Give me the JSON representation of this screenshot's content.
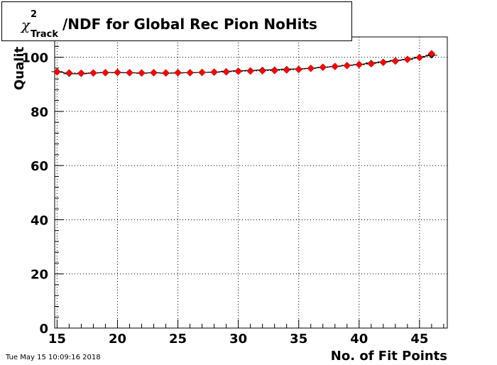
{
  "title": {
    "chi": "χ",
    "sup": "2",
    "sub": "Track",
    "main": "/NDF for Global Rec Pion NoHits"
  },
  "timestamp": "Tue May 15 10:09:16 2018",
  "colors": {
    "marker": "#ff0000",
    "reference": "#000000",
    "grid": "#000000"
  },
  "chart_data": {
    "type": "scatter",
    "xlabel": "No. of Fit Points",
    "ylabel": "Qualit",
    "xlim": [
      14.8,
      47.3
    ],
    "ylim": [
      0,
      107.5
    ],
    "xticks": [
      15,
      20,
      25,
      30,
      35,
      40,
      45
    ],
    "yticks": [
      0,
      20,
      40,
      60,
      80,
      100
    ],
    "grid": true,
    "series": [
      {
        "marker": "black-diamond-errorbars",
        "x": [
          15,
          16,
          17,
          18,
          19,
          20,
          21,
          22,
          23,
          24,
          25,
          26,
          27,
          28,
          29,
          30,
          31,
          32,
          33,
          34,
          35,
          36,
          37,
          38,
          39,
          40,
          41,
          42,
          43,
          44,
          45,
          46
        ],
        "y": [
          94.7,
          93.9,
          93.9,
          94.2,
          94.4,
          94.3,
          94.3,
          94.1,
          94.3,
          94.1,
          94.2,
          94.3,
          94.4,
          94.5,
          94.8,
          95.0,
          95.1,
          95.3,
          95.4,
          95.6,
          95.7,
          95.9,
          96.3,
          96.6,
          97.0,
          97.3,
          97.9,
          98.3,
          98.8,
          99.2,
          100.0,
          100.7
        ]
      },
      {
        "marker": "red-diamond",
        "x": [
          15,
          16,
          17,
          18,
          19,
          20,
          21,
          22,
          23,
          24,
          25,
          26,
          27,
          28,
          29,
          30,
          31,
          32,
          33,
          34,
          35,
          36,
          37,
          38,
          39,
          40,
          41,
          42,
          43,
          44,
          45,
          46
        ],
        "y": [
          94.6,
          94.2,
          94.1,
          94.2,
          94.3,
          94.4,
          94.3,
          94.2,
          94.3,
          94.2,
          94.3,
          94.3,
          94.4,
          94.5,
          94.6,
          94.8,
          94.9,
          95.0,
          95.1,
          95.3,
          95.5,
          95.9,
          96.3,
          96.6,
          96.9,
          97.3,
          97.6,
          98.1,
          98.6,
          99.2,
          99.9,
          101.3
        ]
      }
    ]
  }
}
